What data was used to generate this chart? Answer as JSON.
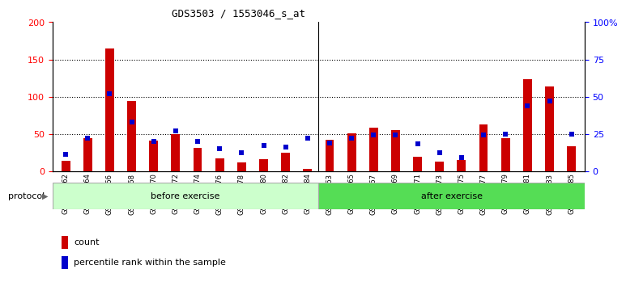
{
  "title": "GDS3503 / 1553046_s_at",
  "samples": [
    "GSM306062",
    "GSM306064",
    "GSM306066",
    "GSM306068",
    "GSM306070",
    "GSM306072",
    "GSM306074",
    "GSM306076",
    "GSM306078",
    "GSM306080",
    "GSM306082",
    "GSM306084",
    "GSM306063",
    "GSM306065",
    "GSM306067",
    "GSM306069",
    "GSM306071",
    "GSM306073",
    "GSM306075",
    "GSM306077",
    "GSM306079",
    "GSM306081",
    "GSM306083",
    "GSM306085"
  ],
  "count": [
    14,
    44,
    165,
    94,
    41,
    49,
    31,
    17,
    12,
    16,
    25,
    3,
    42,
    51,
    58,
    55,
    19,
    13,
    15,
    62,
    44,
    123,
    114,
    33
  ],
  "percentile": [
    11,
    22,
    52,
    33,
    20,
    27,
    20,
    15,
    12,
    17,
    16,
    22,
    19,
    22,
    24,
    24,
    18,
    12,
    9,
    24,
    25,
    44,
    47,
    25
  ],
  "n_before": 12,
  "n_after": 12,
  "red": "#cc0000",
  "blue": "#0000cc",
  "ylim_left": [
    0,
    200
  ],
  "ylim_right": [
    0,
    100
  ],
  "yticks_left": [
    0,
    50,
    100,
    150,
    200
  ],
  "yticks_right": [
    0,
    25,
    50,
    75,
    100
  ],
  "ytick_labels_right": [
    "0",
    "25",
    "50",
    "75",
    "100%"
  ],
  "grid_vals": [
    50,
    100,
    150
  ],
  "before_color": "#ccffcc",
  "after_color": "#55dd55",
  "protocol_label": "protocol",
  "before_label": "before exercise",
  "after_label": "after exercise",
  "legend1": "count",
  "legend2": "percentile rank within the sample",
  "red_bar_width": 0.4,
  "blue_marker_size": 6,
  "scale": 2.0
}
